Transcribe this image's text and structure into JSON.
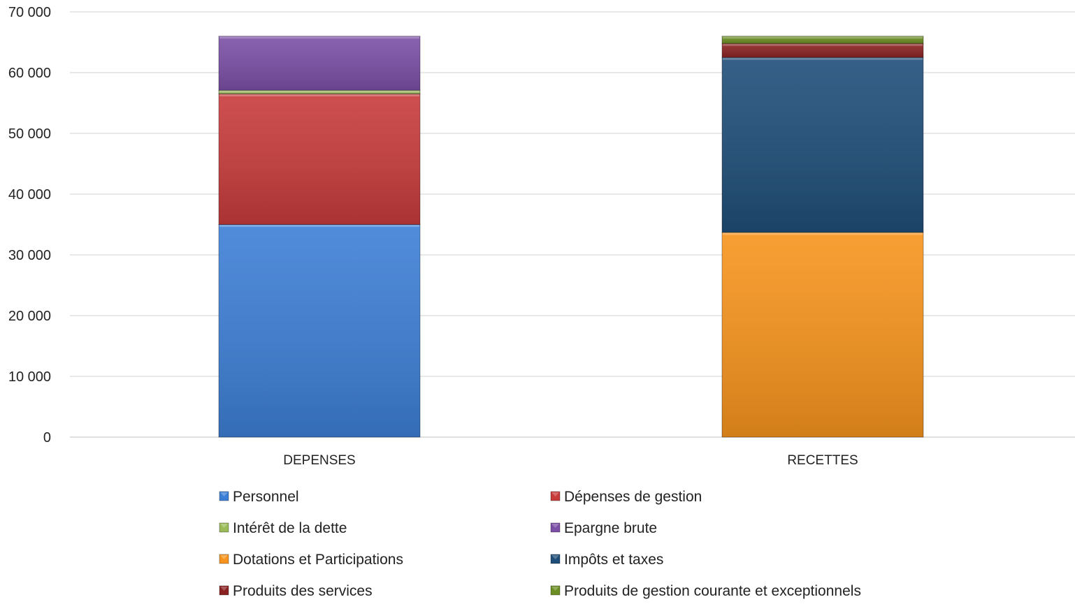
{
  "chart_data": {
    "type": "bar",
    "stacked": true,
    "categories": [
      "DEPENSES",
      "RECETTES"
    ],
    "ylim": [
      0,
      70000
    ],
    "yticks": [
      0,
      10000,
      20000,
      30000,
      40000,
      50000,
      60000,
      70000
    ],
    "ytick_labels": [
      "0",
      "10 000",
      "20 000",
      "30 000",
      "40 000",
      "50 000",
      "60 000",
      "70 000"
    ],
    "grid": true,
    "legend_position": "bottom",
    "series": [
      {
        "name": "Personnel",
        "values": [
          35000,
          0
        ],
        "color": "#3d7fd6"
      },
      {
        "name": "Dépenses de gestion",
        "values": [
          21500,
          0
        ],
        "color": "#c83b3b"
      },
      {
        "name": "Intérêt de la dette",
        "values": [
          600,
          0
        ],
        "color": "#9bbb59"
      },
      {
        "name": "Epargne brute",
        "values": [
          8900,
          0
        ],
        "color": "#7b4fa6"
      },
      {
        "name": "Dotations et Participations",
        "values": [
          0,
          33700
        ],
        "color": "#f7941d"
      },
      {
        "name": "Impôts et taxes",
        "values": [
          0,
          28800
        ],
        "color": "#1f4e79"
      },
      {
        "name": "Produits des services",
        "values": [
          0,
          2300
        ],
        "color": "#8b2222"
      },
      {
        "name": "Produits de gestion courante et exceptionnels",
        "values": [
          0,
          1200
        ],
        "color": "#6b8e23"
      }
    ]
  }
}
